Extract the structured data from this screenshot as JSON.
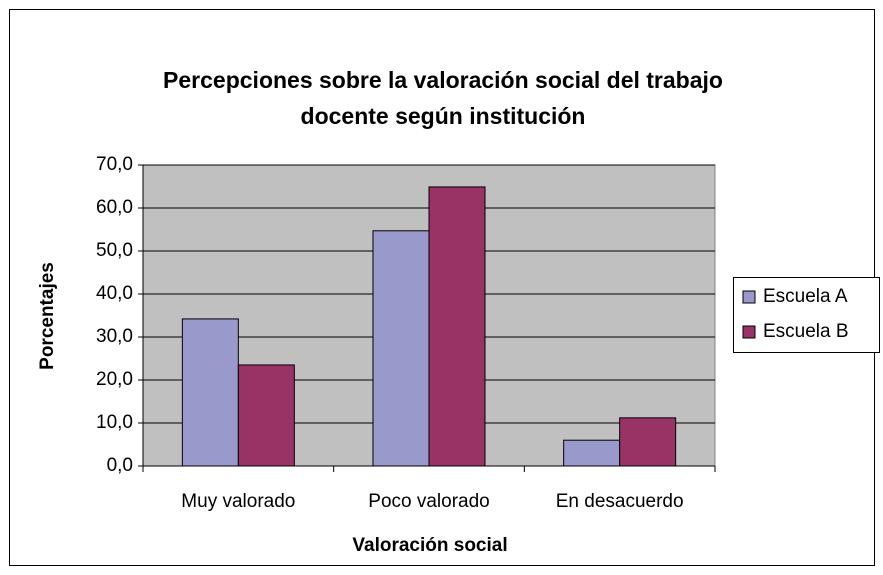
{
  "chart_data": {
    "type": "bar",
    "title": [
      "Percepciones sobre la valoración social del trabajo",
      "docente según institución"
    ],
    "x_label": "Valoración social",
    "y_label": "Porcentajes",
    "categories": [
      "Muy valorado",
      "Poco valorado",
      "En desacuerdo"
    ],
    "series": [
      {
        "name": "Escuela A",
        "color": "#9999cc",
        "values": [
          34.2,
          54.7,
          6.0
        ]
      },
      {
        "name": "Escuela B",
        "color": "#993366",
        "values": [
          23.5,
          64.9,
          11.2
        ]
      }
    ],
    "ylim": [
      0,
      70
    ],
    "yticks": [
      {
        "value": 0,
        "label": "0,0"
      },
      {
        "value": 10,
        "label": "10,0"
      },
      {
        "value": 20,
        "label": "20,0"
      },
      {
        "value": 30,
        "label": "30,0"
      },
      {
        "value": 40,
        "label": "40,0"
      },
      {
        "value": 50,
        "label": "50,0"
      },
      {
        "value": 60,
        "label": "60,0"
      },
      {
        "value": 70,
        "label": "70,0"
      }
    ],
    "grid": true,
    "legend": "right"
  }
}
